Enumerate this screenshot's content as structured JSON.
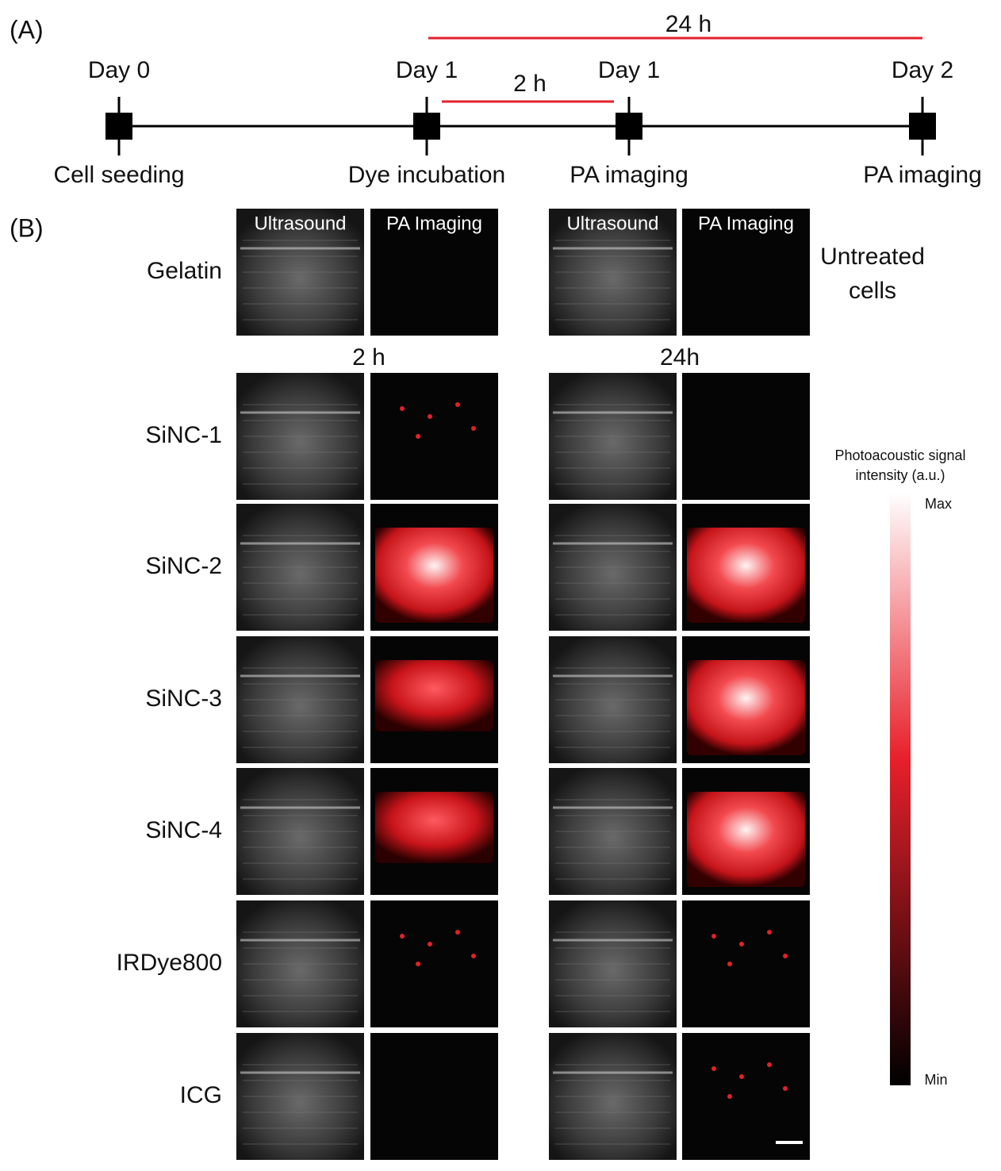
{
  "panel_a": {
    "label": "(A)",
    "spans": [
      "24 h",
      "2 h"
    ],
    "events": [
      {
        "day": "Day 0",
        "step": "Cell seeding"
      },
      {
        "day": "Day 1",
        "step": "Dye incubation"
      },
      {
        "day": "Day 1",
        "step": "PA imaging"
      },
      {
        "day": "Day 2",
        "step": "PA imaging"
      }
    ]
  },
  "panel_b": {
    "label": "(B)",
    "column_headers": [
      "Ultrasound",
      "PA Imaging",
      "Ultrasound",
      "PA Imaging"
    ],
    "time_labels": [
      "2 h",
      "24h"
    ],
    "control_label": [
      "Untreated",
      "cells"
    ],
    "rows": [
      "Gelatin",
      "SiNC-1",
      "SiNC-2",
      "SiNC-3",
      "SiNC-4",
      "IRDye800",
      "ICG"
    ],
    "colorbar": {
      "title": [
        "Photoacoustic signal",
        "intensity (a.u.)"
      ],
      "max": "Max",
      "min": "Min"
    }
  }
}
